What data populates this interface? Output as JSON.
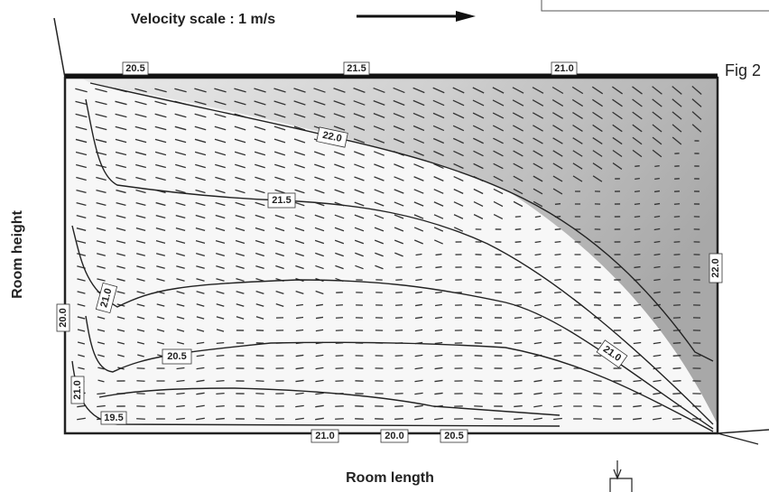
{
  "header": {
    "velocity_scale": "Velocity scale : 1 m/s",
    "figure_label": "Fig 2"
  },
  "axes": {
    "y_label": "Room height",
    "x_label": "Room length"
  },
  "contour_labels": [
    "22.0",
    "21.5",
    "21.0",
    "20.5",
    "21.0",
    "22.0",
    "21.0",
    "19.5",
    "21.0",
    "20.0",
    "20.5",
    "20.0",
    "21.5",
    "21.0",
    "20.5"
  ]
}
